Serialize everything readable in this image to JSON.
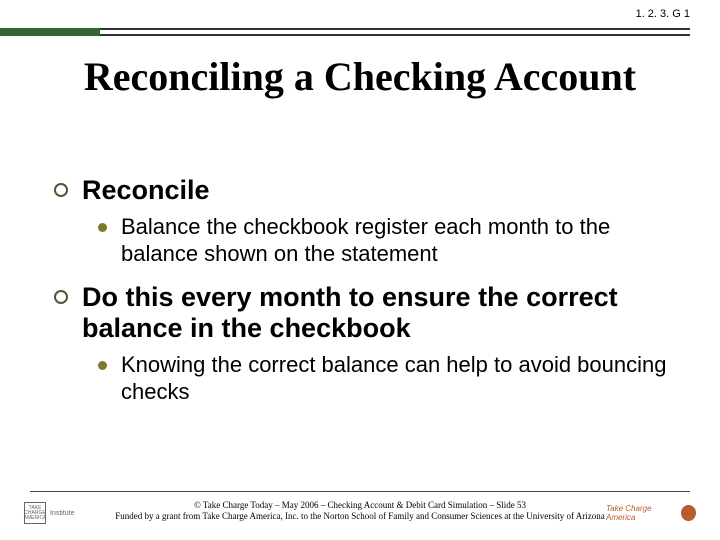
{
  "colors": {
    "accent_green": "#336633",
    "rule_dark": "#333333",
    "text": "#000000",
    "bullet_ring": "#555533",
    "bullet_dot": "#7a7a2a",
    "logo_right": "#b85c2f"
  },
  "header": {
    "code": "1. 2. 3. G 1"
  },
  "title": "Reconciling a Checking Account",
  "body": {
    "item1": {
      "heading": "Reconcile",
      "sub1": "Balance the checkbook register each month to the balance shown on the statement"
    },
    "item2": {
      "heading": "Do this every month to ensure the correct balance in the checkbook",
      "sub1": "Knowing the correct balance can help to avoid bouncing checks"
    }
  },
  "footer": {
    "line1": "© Take Charge Today – May 2006 – Checking Account & Debit Card Simulation –  Slide 53",
    "line2": "Funded by a grant from Take Charge America, Inc. to the Norton School of Family and Consumer Sciences at the University of Arizona"
  },
  "logos": {
    "left_box": "TAKE CHARGE AMERICA",
    "left_word": "Institute",
    "right_text": "Take Charge America"
  }
}
